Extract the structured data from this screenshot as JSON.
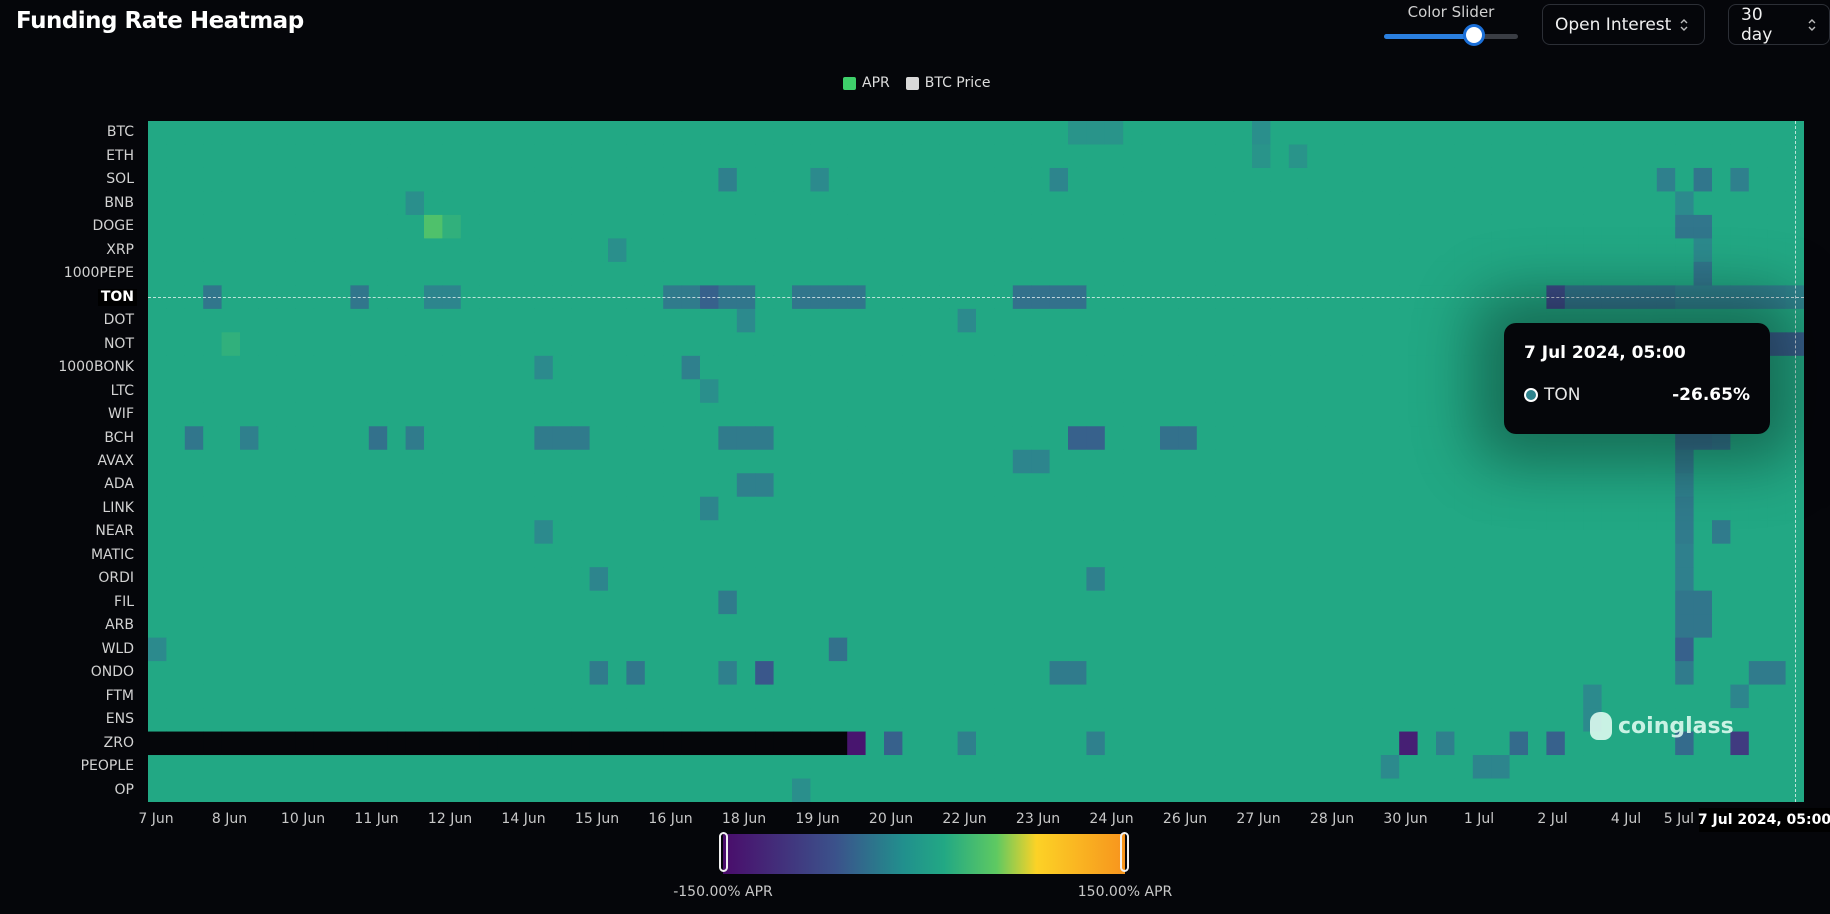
{
  "header": {
    "title": "Funding Rate Heatmap"
  },
  "controls": {
    "color_slider_label": "Color Slider",
    "color_slider_value": 0.67,
    "metric_select": "Open Interest",
    "range_select": "30 day"
  },
  "colors": {
    "accent": "#2a7fe0",
    "apr_legend": "#3ecf6a",
    "btc_legend": "#d9d9d9"
  },
  "chart_data": {
    "type": "heatmap",
    "title": "",
    "legend": [
      {
        "name": "APR",
        "color": "#3ecf6a"
      },
      {
        "name": "BTC Price",
        "color": "#d9d9d9"
      }
    ],
    "legend_placement": "top-center",
    "y_categories": [
      "BTC",
      "ETH",
      "SOL",
      "BNB",
      "DOGE",
      "XRP",
      "1000PEPE",
      "TON",
      "DOT",
      "NOT",
      "1000BONK",
      "LTC",
      "WIF",
      "BCH",
      "AVAX",
      "ADA",
      "LINK",
      "NEAR",
      "MATIC",
      "ORDI",
      "FIL",
      "ARB",
      "WLD",
      "ONDO",
      "FTM",
      "ENS",
      "ZRO",
      "PEOPLE",
      "OP"
    ],
    "x_columns": 90,
    "x_interval": "8h",
    "x_tick_labels": [
      "7 Jun",
      "8 Jun",
      "10 Jun",
      "11 Jun",
      "12 Jun",
      "14 Jun",
      "15 Jun",
      "16 Jun",
      "18 Jun",
      "19 Jun",
      "20 Jun",
      "22 Jun",
      "23 Jun",
      "24 Jun",
      "26 Jun",
      "27 Jun",
      "28 Jun",
      "30 Jun",
      "1 Jul",
      "2 Jul",
      "4 Jul",
      "5 Jul"
    ],
    "x_highlight_label": "7 Jul 2024, 05:00",
    "default_apr": 10,
    "cells": {
      "BTC": {
        "50": -10,
        "51": -10,
        "52": -10,
        "60": -15
      },
      "ETH": {
        "60": -10,
        "62": -10
      },
      "SOL": {
        "31": -30,
        "36": -20,
        "49": -25,
        "82": -30,
        "84": -40,
        "86": -30
      },
      "BNB": {
        "14": -15,
        "83": -20
      },
      "DOGE": {
        "15": 40,
        "16": 20,
        "83": -40,
        "84": -40
      },
      "XRP": {
        "25": -15,
        "84": -20
      },
      "1000PEPE": {
        "84": -40
      },
      "TON": {
        "3": -40,
        "11": -40,
        "15": -25,
        "16": -25,
        "28": -35,
        "29": -35,
        "30": -60,
        "31": -40,
        "32": -40,
        "35": -40,
        "36": -40,
        "37": -40,
        "38": -40,
        "47": -45,
        "48": -45,
        "49": -45,
        "50": -45,
        "76": -80,
        "77": -40,
        "78": -40,
        "79": -40,
        "80": -40,
        "81": -40,
        "82": -40,
        "83": -30,
        "84": -30,
        "85": -30,
        "86": -30,
        "87": -30,
        "88": -30,
        "89": -26.65
      },
      "DOT": {
        "32": -20,
        "44": -20
      },
      "NOT": {
        "4": 20,
        "88": -60,
        "89": -60
      },
      "1000BONK": {
        "29": -30,
        "21": -20,
        "84": -25
      },
      "LTC": {
        "30": -15
      },
      "WIF": {
        "84": -20
      },
      "BCH": {
        "2": -40,
        "5": -30,
        "12": -45,
        "14": -35,
        "21": -35,
        "22": -35,
        "23": -35,
        "31": -35,
        "32": -35,
        "33": -35,
        "50": -60,
        "51": -60,
        "55": -45,
        "56": -45,
        "83": -45,
        "84": -45,
        "85": -40
      },
      "AVAX": {
        "47": -25,
        "48": -25,
        "83": -35
      },
      "ADA": {
        "32": -30,
        "33": -30,
        "83": -30
      },
      "LINK": {
        "30": -25,
        "83": -35
      },
      "NEAR": {
        "21": -20,
        "83": -35,
        "85": -35
      },
      "MATIC": {
        "83": -30
      },
      "ORDI": {
        "24": -25,
        "51": -30,
        "83": -30
      },
      "FIL": {
        "31": -35,
        "83": -40,
        "84": -40
      },
      "ARB": {
        "83": -40,
        "84": -40
      },
      "WLD": {
        "0": -20,
        "37": -45,
        "83": -60
      },
      "ONDO": {
        "24": -35,
        "26": -40,
        "31": -30,
        "33": -70,
        "49": -35,
        "50": -35,
        "83": -35,
        "87": -35,
        "88": -35
      },
      "FTM": {
        "78": -20,
        "86": -25
      },
      "ENS": {
        "78": -20
      },
      "ZRO": {
        "0": null,
        "1": null,
        "2": null,
        "3": null,
        "4": null,
        "5": null,
        "6": null,
        "7": null,
        "8": null,
        "9": null,
        "10": null,
        "11": null,
        "12": null,
        "13": null,
        "14": null,
        "15": null,
        "16": null,
        "17": null,
        "18": null,
        "19": null,
        "20": null,
        "21": null,
        "22": null,
        "23": null,
        "24": null,
        "25": null,
        "26": null,
        "27": null,
        "28": null,
        "29": null,
        "30": null,
        "31": null,
        "32": null,
        "33": null,
        "34": null,
        "35": null,
        "36": null,
        "37": null,
        "38": -140,
        "40": -60,
        "44": -30,
        "51": -30,
        "68": -130,
        "70": -30,
        "74": -50,
        "76": -60,
        "83": -50,
        "86": -100
      },
      "PEOPLE": {
        "67": -20,
        "72": -25,
        "73": -25
      },
      "OP": {
        "35": -15
      }
    },
    "color_scale": {
      "min": -150,
      "max": 150,
      "min_label": "-150.00% APR",
      "max_label": "150.00% APR"
    },
    "tooltip": {
      "date": "7 Jul 2024, 05:00",
      "symbol": "TON",
      "value": "-26.65%"
    },
    "highlight": {
      "symbol": "TON",
      "column": 89
    }
  },
  "watermark": "coinglass"
}
